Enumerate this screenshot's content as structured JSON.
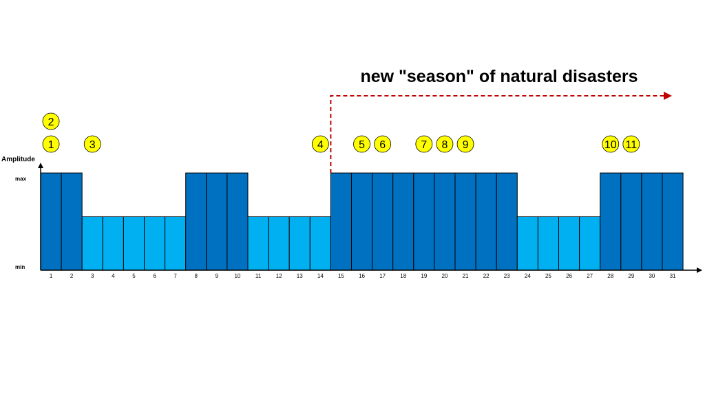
{
  "chart_data": {
    "type": "bar",
    "ylabel": "Amplitude",
    "y_tick_labels": [
      "min",
      "max"
    ],
    "ylim": [
      0,
      1
    ],
    "categories": [
      "1",
      "2",
      "3",
      "4",
      "5",
      "6",
      "7",
      "8",
      "9",
      "10",
      "11",
      "12",
      "13",
      "14",
      "15",
      "16",
      "17",
      "18",
      "19",
      "20",
      "21",
      "22",
      "23",
      "24",
      "25",
      "26",
      "27",
      "28",
      "29",
      "30",
      "31"
    ],
    "values": [
      1,
      1,
      0.55,
      0.55,
      0.55,
      0.55,
      0.55,
      1,
      1,
      1,
      0.55,
      0.55,
      0.55,
      0.55,
      1,
      1,
      1,
      1,
      1,
      1,
      1,
      1,
      1,
      0.55,
      0.55,
      0.55,
      0.55,
      1,
      1,
      1,
      1
    ],
    "colors": {
      "high": "#0070c0",
      "low": "#00b0f0",
      "edge": "#000000",
      "arrow": "#c00000",
      "marker_fill": "#ffff00"
    },
    "annotation": {
      "text": "new \"season\" of natural disasters",
      "start_category": "15"
    },
    "markers": [
      {
        "label": "1",
        "category": "1",
        "row": 1
      },
      {
        "label": "2",
        "category": "1",
        "row": 2
      },
      {
        "label": "3",
        "category": "3",
        "row": 1
      },
      {
        "label": "4",
        "category": "14",
        "row": 1
      },
      {
        "label": "5",
        "category": "16",
        "row": 1
      },
      {
        "label": "6",
        "category": "17",
        "row": 1
      },
      {
        "label": "7",
        "category": "19",
        "row": 1
      },
      {
        "label": "8",
        "category": "20",
        "row": 1
      },
      {
        "label": "9",
        "category": "21",
        "row": 1
      },
      {
        "label": "10",
        "category": "28",
        "row": 1
      },
      {
        "label": "11",
        "category": "29",
        "row": 1
      }
    ]
  }
}
